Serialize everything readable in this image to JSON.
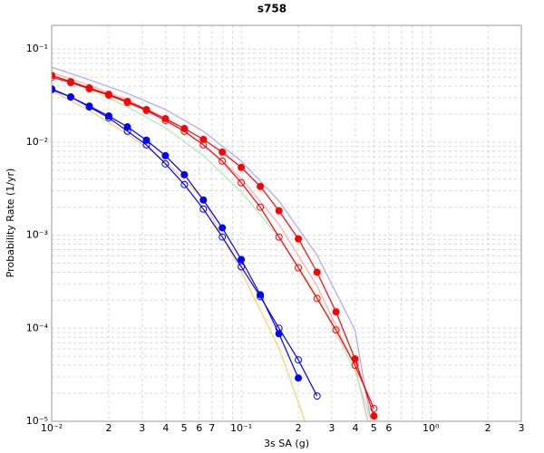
{
  "chart_data": {
    "type": "line",
    "title": "s758",
    "x_label": "3s SA (g)",
    "y_label": "Probability Rate (1/yr)",
    "xscale": "log",
    "yscale": "log",
    "grid": true,
    "xlim": [
      0.01,
      3
    ],
    "ylim": [
      1e-05,
      0.18
    ],
    "xticks": [
      {
        "value": 0.01,
        "label": "10⁻²"
      },
      {
        "value": 0.02,
        "label": "2"
      },
      {
        "value": 0.03,
        "label": "3"
      },
      {
        "value": 0.04,
        "label": "4"
      },
      {
        "value": 0.05,
        "label": "5"
      },
      {
        "value": 0.06,
        "label": "6"
      },
      {
        "value": 0.07,
        "label": "7"
      },
      {
        "value": 0.1,
        "label": "10⁻¹"
      },
      {
        "value": 0.2,
        "label": "2"
      },
      {
        "value": 0.3,
        "label": "3"
      },
      {
        "value": 0.4,
        "label": "4"
      },
      {
        "value": 0.5,
        "label": "5"
      },
      {
        "value": 0.6,
        "label": "6"
      },
      {
        "value": 1,
        "label": "10⁰"
      },
      2,
      3
    ],
    "xminorticks": [
      0.08,
      0.09,
      0.7,
      0.8,
      0.9
    ],
    "yticks": [
      {
        "value": 1e-05,
        "label": "10⁻⁵"
      },
      {
        "value": 0.0001,
        "label": "10⁻⁴"
      },
      {
        "value": 0.001,
        "label": "10⁻³"
      },
      {
        "value": 0.01,
        "label": "10⁻²"
      },
      {
        "value": 0.1,
        "label": "10⁻¹"
      }
    ],
    "yminorticks": [
      2e-05,
      3e-05,
      4e-05,
      5e-05,
      6e-05,
      7e-05,
      8e-05,
      9e-05,
      0.0002,
      0.0003,
      0.0004,
      0.0005,
      0.0006,
      0.0007,
      0.0008,
      0.0009,
      0.002,
      0.003,
      0.004,
      0.005,
      0.006,
      0.007,
      0.008,
      0.009,
      0.02,
      0.03,
      0.04,
      0.05,
      0.06,
      0.07,
      0.08,
      0.09
    ],
    "series": [
      {
        "color": "#aaaaee",
        "marker": "none",
        "x": [
          0.01,
          0.0158,
          0.0251,
          0.0398,
          0.0631,
          0.1,
          0.158,
          0.251,
          0.398,
          0.501
        ],
        "values": [
          0.064,
          0.0468,
          0.0334,
          0.0224,
          0.0131,
          0.00625,
          0.00234,
          0.000611,
          9.57e-05,
          6.5e-06
        ]
      },
      {
        "color": "#ffaaaa",
        "marker": "none",
        "x": [
          0.01,
          0.0158,
          0.0251,
          0.0398,
          0.0631,
          0.1,
          0.158,
          0.251,
          0.398,
          0.501
        ],
        "values": [
          0.056,
          0.0409,
          0.0286,
          0.0179,
          0.00935,
          0.00409,
          0.00131,
          0.000286,
          3.91e-05,
          5.2e-06
        ]
      },
      {
        "color": "#aaeeaa",
        "marker": "none",
        "x": [
          0.01,
          0.0158,
          0.0251,
          0.0398,
          0.0631,
          0.1,
          0.158,
          0.251,
          0.398,
          0.501
        ],
        "values": [
          0.0523,
          0.0374,
          0.0239,
          0.0143,
          0.00715,
          0.00292,
          0.000957,
          0.000224,
          3.5e-05,
          8e-06
        ]
      },
      {
        "color": "#ffcc66",
        "marker": "none",
        "x": [
          0.01,
          0.0158,
          0.0251,
          0.0398,
          0.0631,
          0.0794,
          0.1,
          0.158,
          0.2,
          0.251
        ],
        "values": [
          0.0357,
          0.0219,
          0.0122,
          0.00625,
          0.00244,
          0.000957,
          0.000409,
          6.11e-05,
          1.6e-05,
          4.2e-06
        ]
      },
      {
        "color": "#ff0000",
        "marker": "filled",
        "x": [
          0.01,
          0.0126,
          0.0158,
          0.02,
          0.0251,
          0.0316,
          0.0398,
          0.0501,
          0.0631,
          0.0794,
          0.1,
          0.126,
          0.158,
          0.2,
          0.251,
          0.316,
          0.398,
          0.501
        ],
        "values": [
          0.0523,
          0.0447,
          0.0383,
          0.0327,
          0.0274,
          0.0224,
          0.0179,
          0.014,
          0.0107,
          0.00781,
          0.00535,
          0.00334,
          0.00183,
          0.000914,
          0.0004,
          0.00015,
          4.68e-05,
          1.14e-05
        ]
      },
      {
        "color": "#ff0000",
        "marker": "open",
        "x": [
          0.01,
          0.0126,
          0.0158,
          0.02,
          0.0251,
          0.0316,
          0.0398,
          0.0501,
          0.0631,
          0.0794,
          0.1,
          0.126,
          0.158,
          0.2,
          0.251,
          0.316,
          0.398,
          0.501
        ],
        "values": [
          0.05,
          0.0437,
          0.0374,
          0.032,
          0.0267,
          0.0219,
          0.0171,
          0.0131,
          0.00935,
          0.00625,
          0.00366,
          0.002,
          0.000957,
          0.000447,
          0.000209,
          9.57e-05,
          4e-05,
          1.37e-05
        ]
      },
      {
        "color": "#0000ff",
        "marker": "filled",
        "x": [
          0.01,
          0.0126,
          0.0158,
          0.02,
          0.0251,
          0.0316,
          0.0398,
          0.0501,
          0.0631,
          0.0794,
          0.1,
          0.126,
          0.158,
          0.2
        ],
        "values": [
          0.0374,
          0.0306,
          0.0244,
          0.0191,
          0.0146,
          0.0105,
          0.00715,
          0.00447,
          0.00239,
          0.0012,
          0.000547,
          0.000229,
          8.75e-05,
          2.92e-05
        ]
      },
      {
        "color": "#0000ff",
        "marker": "open",
        "x": [
          0.01,
          0.0126,
          0.0158,
          0.02,
          0.0251,
          0.0316,
          0.0398,
          0.0501,
          0.0631,
          0.0794,
          0.1,
          0.126,
          0.158,
          0.2,
          0.251
        ],
        "values": [
          0.0366,
          0.0306,
          0.0239,
          0.0183,
          0.0131,
          0.00935,
          0.00585,
          0.0035,
          0.00191,
          0.000957,
          0.000457,
          0.000219,
          0.0001,
          4.57e-05,
          1.87e-05
        ]
      }
    ]
  }
}
